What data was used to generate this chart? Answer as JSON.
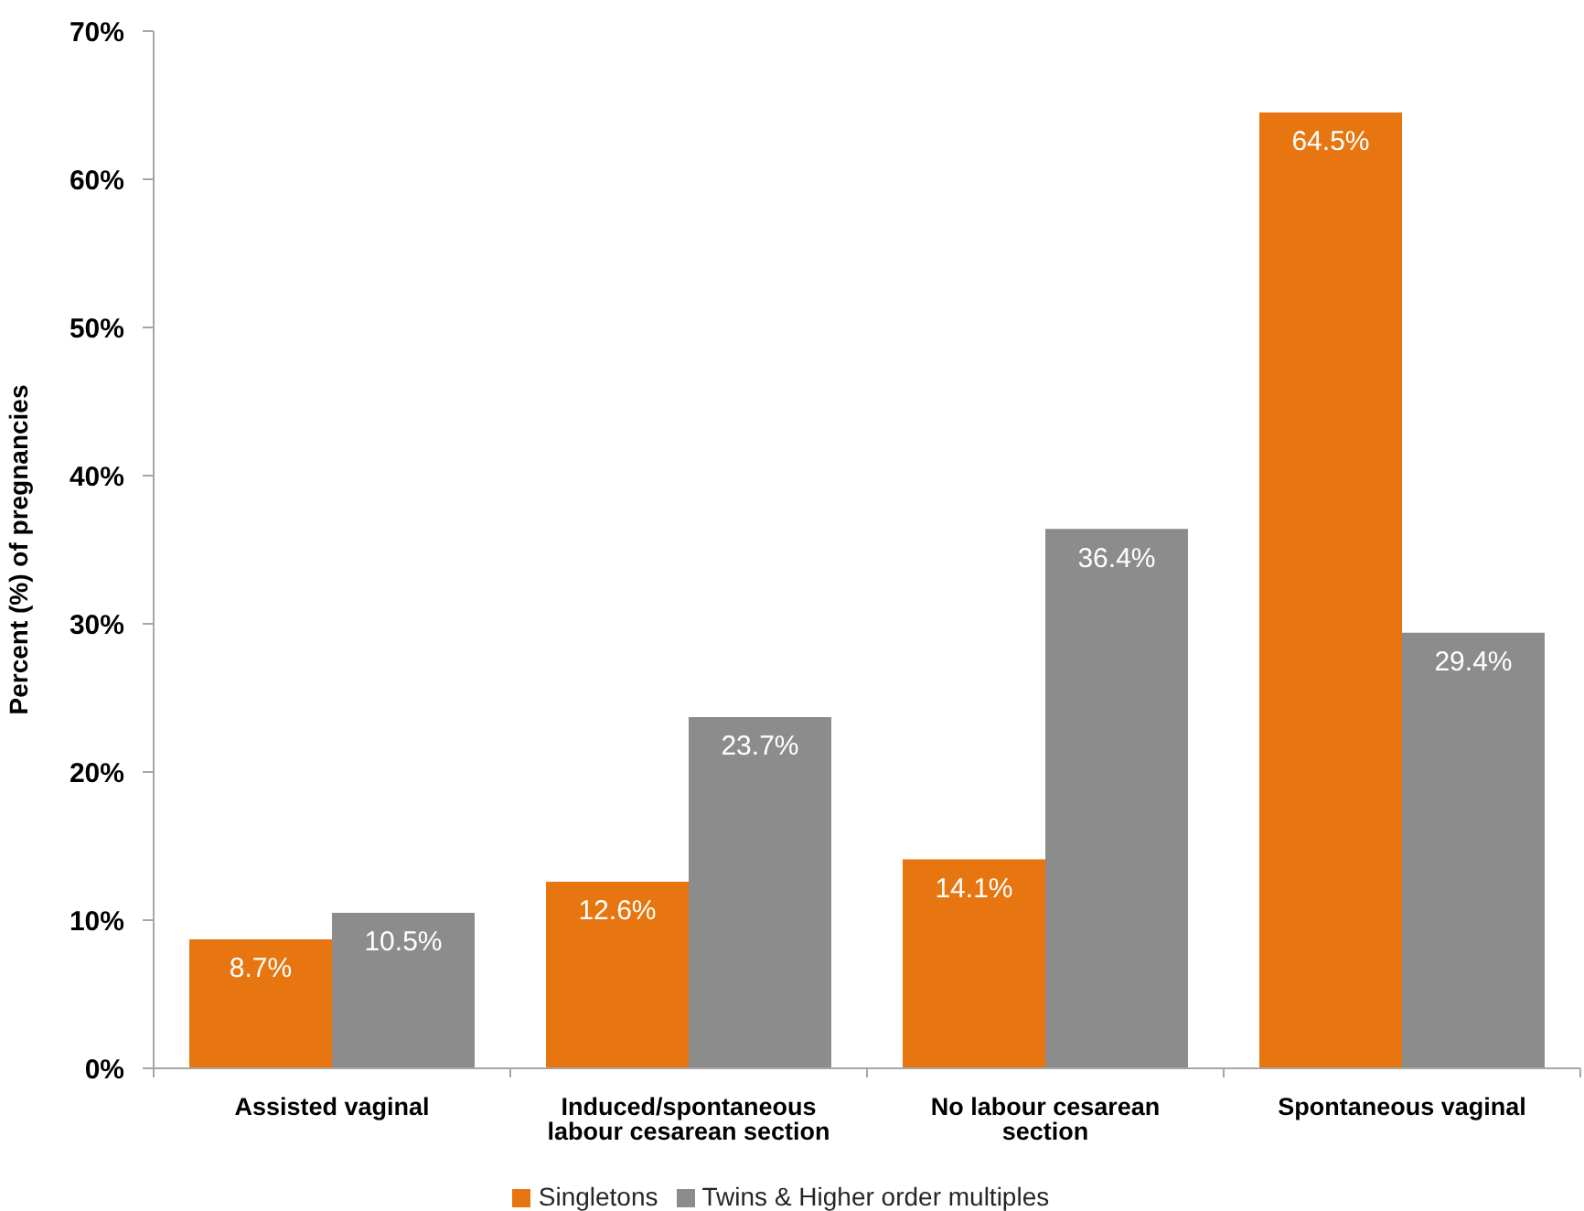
{
  "chart_data": {
    "type": "bar",
    "ylabel": "Percent (%) of pregnancies",
    "categories": [
      "Assisted vaginal",
      "Induced/spontaneous labour cesarean section",
      "No labour cesarean section",
      "Spontaneous vaginal"
    ],
    "series": [
      {
        "name": "Singletons",
        "color": "#e77610",
        "values": [
          8.7,
          12.6,
          14.1,
          64.5
        ],
        "value_labels": [
          "8.7%",
          "12.6%",
          "14.1%",
          "64.5%"
        ]
      },
      {
        "name": "Twins & Higher order multiples",
        "color": "#8c8c8c",
        "values": [
          10.5,
          23.7,
          36.4,
          29.4
        ],
        "value_labels": [
          "10.5%",
          "23.7%",
          "36.4%",
          "29.4%"
        ]
      }
    ],
    "ylim": [
      0,
      70
    ],
    "yticks": [
      {
        "value": 0,
        "label": "0%"
      },
      {
        "value": 10,
        "label": "10%"
      },
      {
        "value": 20,
        "label": "20%"
      },
      {
        "value": 30,
        "label": "30%"
      },
      {
        "value": 40,
        "label": "40%"
      },
      {
        "value": 50,
        "label": "50%"
      },
      {
        "value": 60,
        "label": "60%"
      },
      {
        "value": 70,
        "label": "70%"
      }
    ],
    "legend": "bottom"
  }
}
